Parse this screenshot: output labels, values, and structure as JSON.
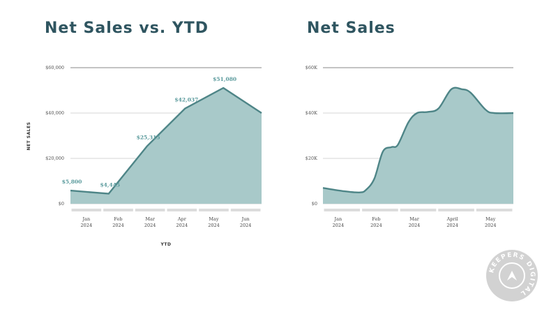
{
  "chart_data": [
    {
      "type": "area",
      "title": "Net Sales vs. YTD",
      "ylabel": "NET SALES",
      "xlabel": "YTD",
      "ylim": [
        0,
        60000
      ],
      "yticks": [
        0,
        20000,
        40000,
        60000
      ],
      "ytick_labels": [
        "$0",
        "$20,000",
        "$40,000",
        "$60,000"
      ],
      "categories": [
        {
          "month": "Jan",
          "year": "2024"
        },
        {
          "month": "Feb",
          "year": "2024"
        },
        {
          "month": "Mar",
          "year": "2024"
        },
        {
          "month": "Apr",
          "year": "2024"
        },
        {
          "month": "May",
          "year": "2024"
        },
        {
          "month": "Jun",
          "year": "2024"
        }
      ],
      "values": [
        5800,
        4445,
        25315,
        42037,
        51080,
        40000
      ],
      "data_labels": [
        "$5,800",
        "$4,445",
        "$25,315",
        "$42,037",
        "$51,080",
        ""
      ],
      "grid": true,
      "colors": {
        "fill": "#a8c9c9",
        "line": "#4e8587",
        "grid": "#c8c8c8",
        "top_line": "#b0b0b0",
        "axis_bar": "#dcdcdc"
      }
    },
    {
      "type": "area",
      "title": "Net Sales",
      "ylim": [
        0,
        60000
      ],
      "yticks": [
        0,
        20000,
        40000,
        60000
      ],
      "ytick_labels": [
        "$0",
        "$20K",
        "$40K",
        "$60K"
      ],
      "categories": [
        {
          "month": "Jan",
          "year": "2024"
        },
        {
          "month": "Feb",
          "year": "2024"
        },
        {
          "month": "Mar",
          "year": "2024"
        },
        {
          "month": "April",
          "year": "2024"
        },
        {
          "month": "May",
          "year": "2024"
        }
      ],
      "x": [
        0,
        0.5,
        0.85,
        1.0,
        1.2,
        1.4,
        1.6,
        1.75,
        2.0,
        2.2,
        2.45,
        2.7,
        3.0,
        3.25,
        3.45,
        3.8,
        4.0,
        4.45
      ],
      "values": [
        7000,
        5500,
        5000,
        6000,
        11000,
        23000,
        25000,
        26000,
        36000,
        40000,
        40500,
        42000,
        50500,
        50500,
        49000,
        41500,
        40000,
        40000
      ],
      "grid": true,
      "colors": {
        "fill": "#a8c9c9",
        "line": "#4e8587",
        "grid": "#c8c8c8",
        "top_line": "#b0b0b0",
        "axis_bar": "#dcdcdc"
      }
    }
  ],
  "logo": {
    "text": "KEEPERS DIGITAL",
    "color": "#cfcfcf"
  }
}
